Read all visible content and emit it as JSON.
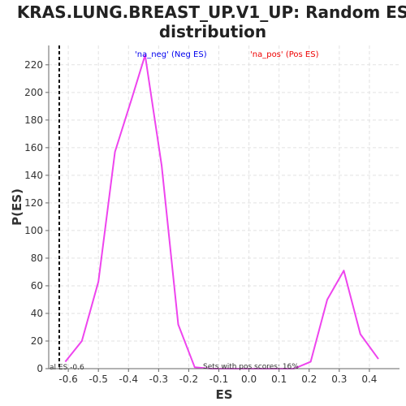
{
  "chart_data": {
    "type": "line",
    "title_line1": "KRAS.LUNG.BREAST_UP.V1_UP: Random ES",
    "title_line2": "distribution",
    "xlabel": "ES",
    "ylabel": "P(ES)",
    "xlim": [
      -0.665,
      0.5
    ],
    "ylim": [
      0,
      234
    ],
    "grid": true,
    "x_ticks": [
      -0.6,
      -0.5,
      -0.4,
      -0.3,
      -0.2,
      -0.1,
      0.0,
      0.1,
      0.2,
      0.3,
      0.4
    ],
    "x_tick_labels": [
      "-0.6",
      "-0.5",
      "-0.4",
      "-0.3",
      "-0.2",
      "-0.1",
      "0.0",
      "0.1",
      "0.2",
      "0.3",
      "0.4"
    ],
    "y_ticks": [
      0,
      20,
      40,
      60,
      80,
      100,
      120,
      140,
      160,
      180,
      200,
      220
    ],
    "y_tick_labels": [
      "0",
      "20",
      "40",
      "60",
      "80",
      "100",
      "120",
      "140",
      "160",
      "180",
      "200",
      "220"
    ],
    "series": [
      {
        "color": "#ee44ee",
        "x": [
          -0.61,
          -0.555,
          -0.5,
          -0.445,
          -0.39,
          -0.345,
          -0.29,
          -0.235,
          -0.18,
          -0.125,
          -0.07,
          -0.015,
          0.04,
          0.095,
          0.15,
          0.205,
          0.26,
          0.315,
          0.37,
          0.43
        ],
        "y": [
          5,
          20,
          63,
          157,
          195,
          227,
          147,
          32,
          1,
          0,
          0,
          0,
          0,
          0,
          0,
          5,
          50,
          71,
          25,
          7
        ]
      }
    ],
    "vline": {
      "x": -0.63,
      "style": "dashed",
      "color": "#000000"
    },
    "legend": [
      {
        "text": "'na_neg' (Neg ES)",
        "color": "#0000ee"
      },
      {
        "text": "'na_pos' (Pos ES)",
        "color": "#ee0000"
      }
    ],
    "annotations": {
      "pos_scores": "Sets with pos scores: 16%",
      "actual_es": "al ES -0.6"
    }
  }
}
